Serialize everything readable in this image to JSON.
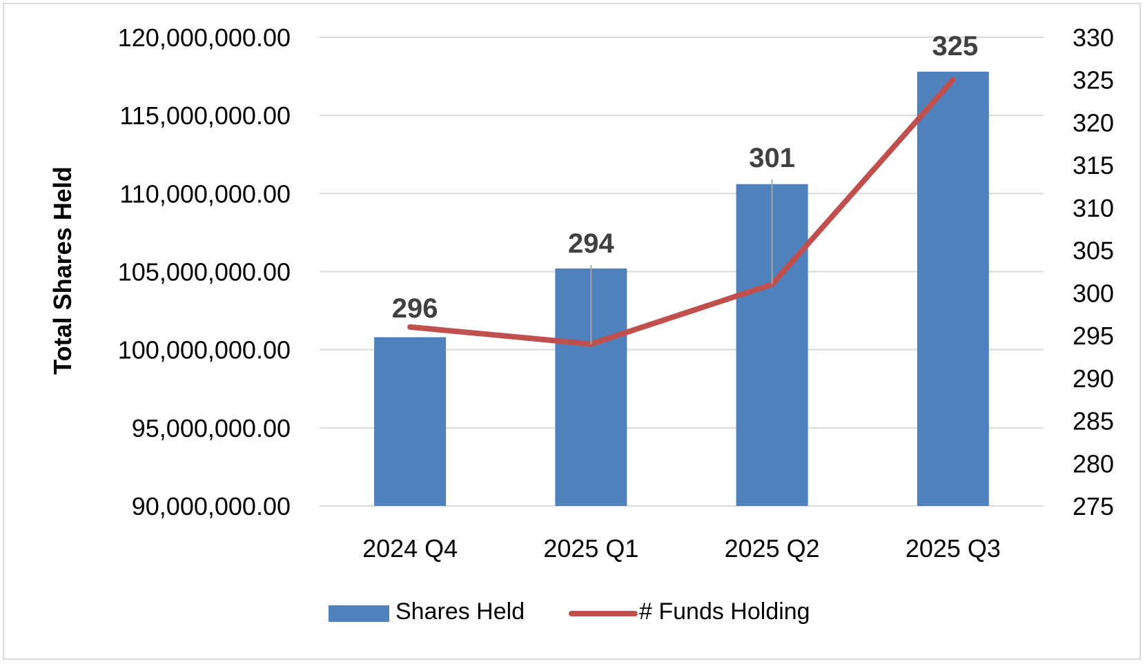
{
  "chart_data": {
    "type": "bar",
    "categories": [
      "2024 Q4",
      "2025 Q1",
      "2025 Q2",
      "2025 Q3"
    ],
    "series": [
      {
        "name": "Shares Held",
        "type": "bar",
        "axis": "left",
        "color": "#4f81bd",
        "values": [
          100800000,
          105200000,
          110600000,
          117800000
        ]
      },
      {
        "name": "# Funds Holding",
        "type": "line",
        "axis": "right",
        "color": "#c0504d",
        "values": [
          296,
          294,
          301,
          325
        ],
        "data_labels": [
          "296",
          "294",
          "301",
          "325"
        ]
      }
    ],
    "ylabel": "Total Shares Held",
    "ylim": [
      90000000,
      120000000
    ],
    "y_ticks": [
      90000000,
      95000000,
      100000000,
      105000000,
      110000000,
      115000000,
      120000000
    ],
    "y_tick_labels": [
      "90,000,000.00",
      "95,000,000.00",
      "100,000,000.00",
      "105,000,000.00",
      "110,000,000.00",
      "115,000,000.00",
      "120,000,000.00"
    ],
    "y2lim": [
      275,
      330
    ],
    "y2_ticks": [
      275,
      280,
      285,
      290,
      295,
      300,
      305,
      310,
      315,
      320,
      325,
      330
    ],
    "y2_tick_labels": [
      "275",
      "280",
      "285",
      "290",
      "295",
      "300",
      "305",
      "310",
      "315",
      "320",
      "325",
      "330"
    ],
    "grid": true,
    "legend": "bottom"
  }
}
